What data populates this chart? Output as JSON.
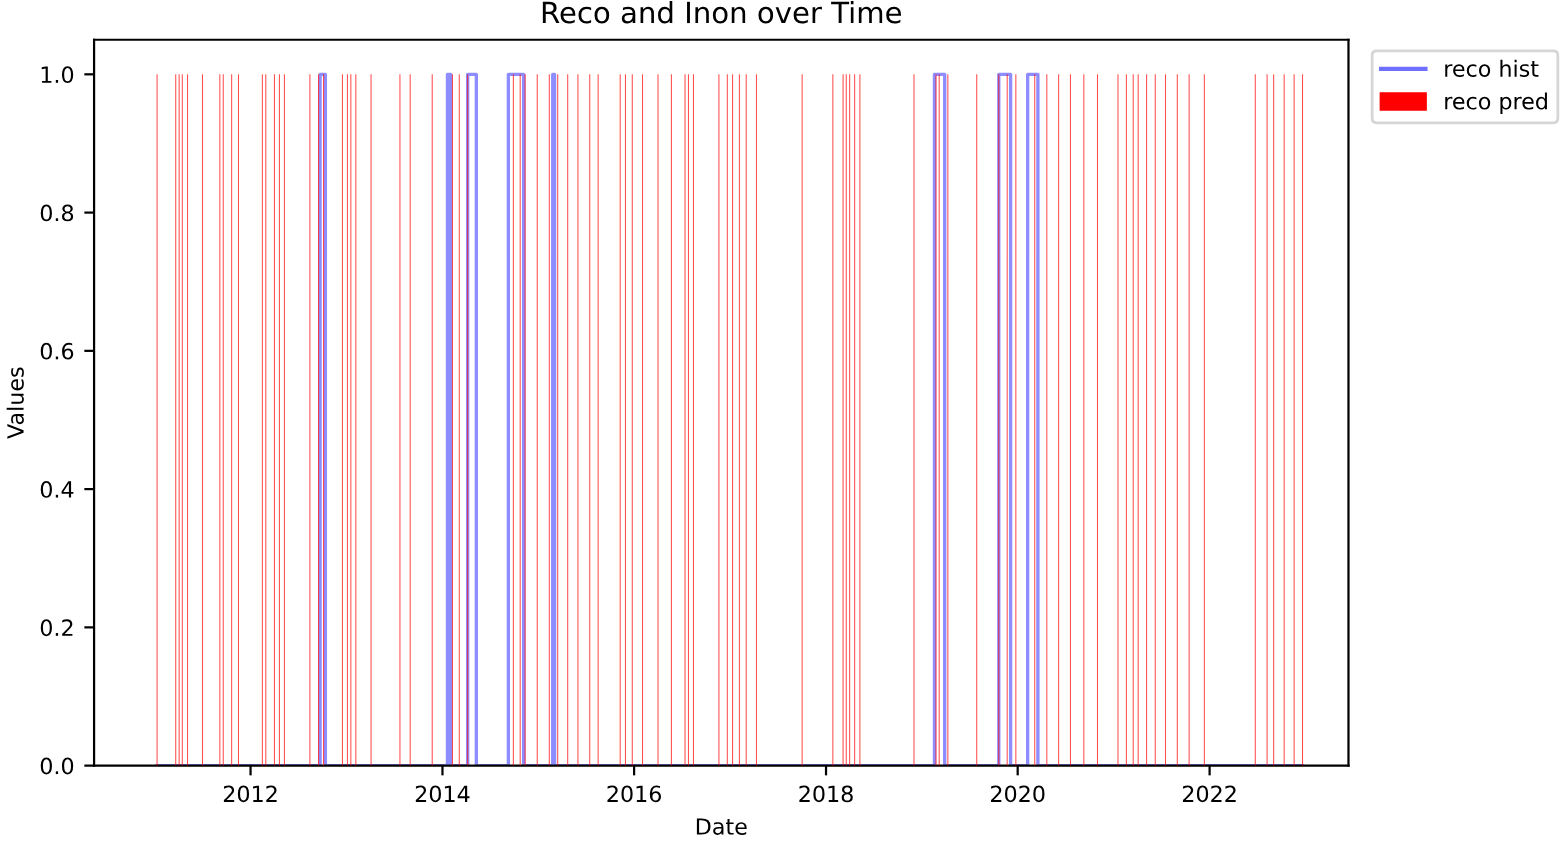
{
  "chart_data": {
    "type": "bar",
    "title": "Reco and Inon over Time",
    "xlabel": "Date",
    "ylabel": "Values",
    "xlim": [
      "2010-05-15",
      "2023-06-14"
    ],
    "xticks": [
      {
        "value": "2012-01-01",
        "label": "2012"
      },
      {
        "value": "2014-01-01",
        "label": "2014"
      },
      {
        "value": "2016-01-01",
        "label": "2016"
      },
      {
        "value": "2018-01-01",
        "label": "2018"
      },
      {
        "value": "2020-01-01",
        "label": "2020"
      },
      {
        "value": "2022-01-01",
        "label": "2022"
      }
    ],
    "ylim": [
      0,
      1.05
    ],
    "yticks": [
      {
        "value": 0,
        "label": "0.0"
      },
      0.2,
      0.4,
      0.6,
      0.8,
      {
        "value": 1,
        "label": "1.0"
      }
    ],
    "grid": false,
    "legend": "right",
    "series": [
      {
        "name": "reco hist",
        "type": "step",
        "color": "#7070ff",
        "x": [
          "2011-01-10",
          "2012-09-22",
          "2012-10-12",
          "2014-01-20",
          "2014-02-01",
          "2014-04-07",
          "2014-05-10",
          "2014-09-09",
          "2014-11-06",
          "2015-02-25",
          "2015-03-04",
          "2019-02-18",
          "2019-03-29",
          "2019-10-21",
          "2019-12-05",
          "2020-02-08",
          "2020-03-18",
          "2022-12-21"
        ],
        "values": [
          0,
          1,
          0,
          1,
          0,
          1,
          0,
          1,
          0,
          1,
          0,
          1,
          0,
          1,
          0,
          1,
          0,
          0
        ]
      },
      {
        "name": "reco pred",
        "color": "#ff0000",
        "x": [
          "2011-01-10",
          "2011-03-22",
          "2011-04-04",
          "2011-04-16",
          "2011-05-06",
          "2011-07-02",
          "2011-09-06",
          "2011-09-19",
          "2011-10-21",
          "2011-11-16",
          "2012-02-15",
          "2012-02-28",
          "2012-04-01",
          "2012-04-20",
          "2012-05-09",
          "2012-08-14",
          "2012-09-16",
          "2012-10-05",
          "2012-12-16",
          "2013-01-04",
          "2013-01-17",
          "2013-02-05",
          "2013-04-04",
          "2013-07-23",
          "2013-08-31",
          "2013-11-23",
          "2014-02-08",
          "2014-03-06",
          "2014-04-07",
          "2014-09-28",
          "2014-10-24",
          "2014-11-12",
          "2014-12-28",
          "2015-02-12",
          "2015-03-16",
          "2015-04-23",
          "2015-06-01",
          "2015-07-16",
          "2015-08-17",
          "2015-11-09",
          "2015-11-29",
          "2015-12-25",
          "2016-02-02",
          "2016-04-01",
          "2016-05-22",
          "2016-07-13",
          "2016-07-26",
          "2016-08-14",
          "2016-11-19",
          "2016-12-21",
          "2017-01-10",
          "2017-02-05",
          "2017-03-03",
          "2017-04-11",
          "2017-10-02",
          "2018-01-27",
          "2018-03-07",
          "2018-03-19",
          "2018-04-01",
          "2018-04-20",
          "2018-05-10",
          "2018-12-02",
          "2019-02-24",
          "2019-03-08",
          "2019-04-10",
          "2019-07-29",
          "2019-10-21",
          "2019-11-22",
          "2019-12-25",
          "2020-03-06",
          "2020-04-21",
          "2020-06-05",
          "2020-07-20",
          "2020-09-09",
          "2020-10-31",
          "2021-01-17",
          "2021-02-18",
          "2021-03-16",
          "2021-04-04",
          "2021-05-06",
          "2021-06-08",
          "2021-07-17",
          "2021-08-31",
          "2021-10-15",
          "2021-12-12",
          "2022-06-24",
          "2022-08-08",
          "2022-09-02",
          "2022-10-12",
          "2022-11-19",
          "2022-12-21"
        ],
        "values": [
          1,
          1,
          1,
          1,
          1,
          1,
          1,
          1,
          1,
          1,
          1,
          1,
          1,
          1,
          1,
          1,
          1,
          1,
          1,
          1,
          1,
          1,
          1,
          1,
          1,
          1,
          1,
          1,
          1,
          1,
          1,
          1,
          1,
          1,
          1,
          1,
          1,
          1,
          1,
          1,
          1,
          1,
          1,
          1,
          1,
          1,
          1,
          1,
          1,
          1,
          1,
          1,
          1,
          1,
          1,
          1,
          1,
          1,
          1,
          1,
          1,
          1,
          1,
          1,
          1,
          1,
          1,
          1,
          1,
          1,
          1,
          1,
          1,
          1,
          1,
          1,
          1,
          1,
          1,
          1,
          1,
          1,
          1,
          1,
          1,
          1,
          1,
          1,
          1,
          1,
          1
        ]
      }
    ]
  }
}
